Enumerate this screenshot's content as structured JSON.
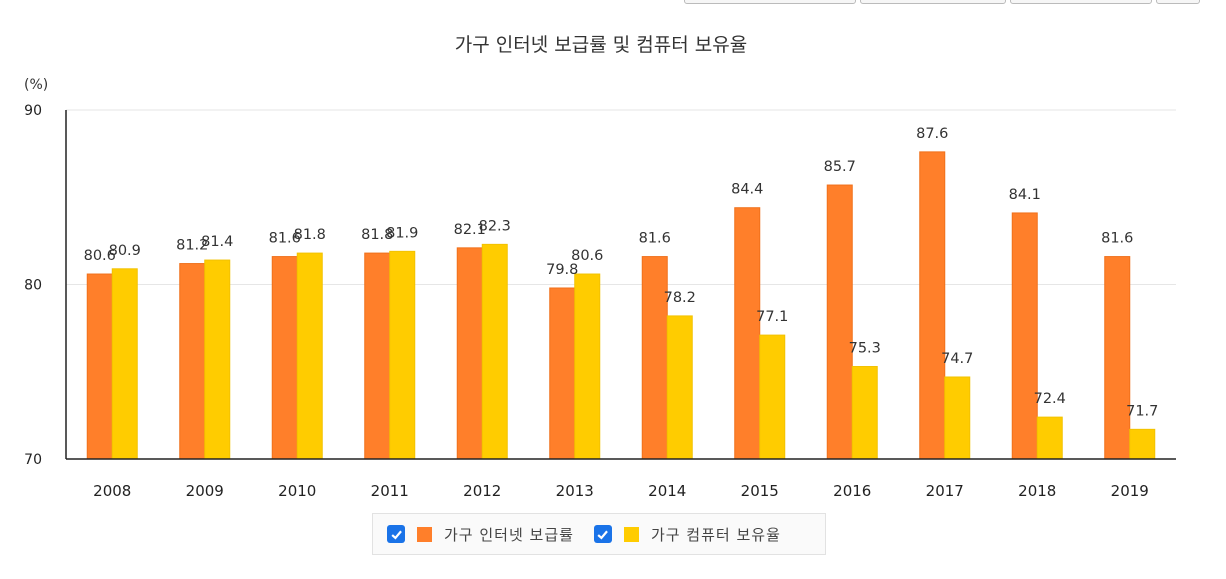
{
  "colors": {
    "internet": "#FF7F2A",
    "internet_border": "#F0701A",
    "computer": "#FFCC00",
    "computer_border": "#F2C200",
    "checkbox": "#1A73E8"
  },
  "legend": {
    "items": [
      {
        "label": "가구 인터넷 보급률",
        "checked": true,
        "checkbox_icon": "checkmark-icon"
      },
      {
        "label": "가구 컴퓨터 보유율",
        "checked": true,
        "checkbox_icon": "checkmark-icon"
      }
    ]
  },
  "chart_data": {
    "type": "bar",
    "title": "가구 인터넷 보급률 및 컴퓨터 보유율",
    "ylabel": "(%)",
    "xlabel": "",
    "ylim": [
      70,
      90
    ],
    "yticks": [
      70,
      80,
      90
    ],
    "grid": true,
    "legend_position": "bottom-center",
    "categories": [
      "2008",
      "2009",
      "2010",
      "2011",
      "2012",
      "2013",
      "2014",
      "2015",
      "2016",
      "2017",
      "2018",
      "2019"
    ],
    "series": [
      {
        "name": "가구 인터넷 보급률",
        "color": "#FF7F2A",
        "values": [
          80.6,
          81.2,
          81.6,
          81.8,
          82.1,
          79.8,
          81.6,
          84.4,
          85.7,
          87.6,
          84.1,
          81.6
        ]
      },
      {
        "name": "가구 컴퓨터 보유율",
        "color": "#FFCC00",
        "values": [
          80.9,
          81.4,
          81.8,
          81.9,
          82.3,
          80.6,
          78.2,
          77.1,
          75.3,
          74.7,
          72.4,
          71.7
        ]
      }
    ]
  }
}
